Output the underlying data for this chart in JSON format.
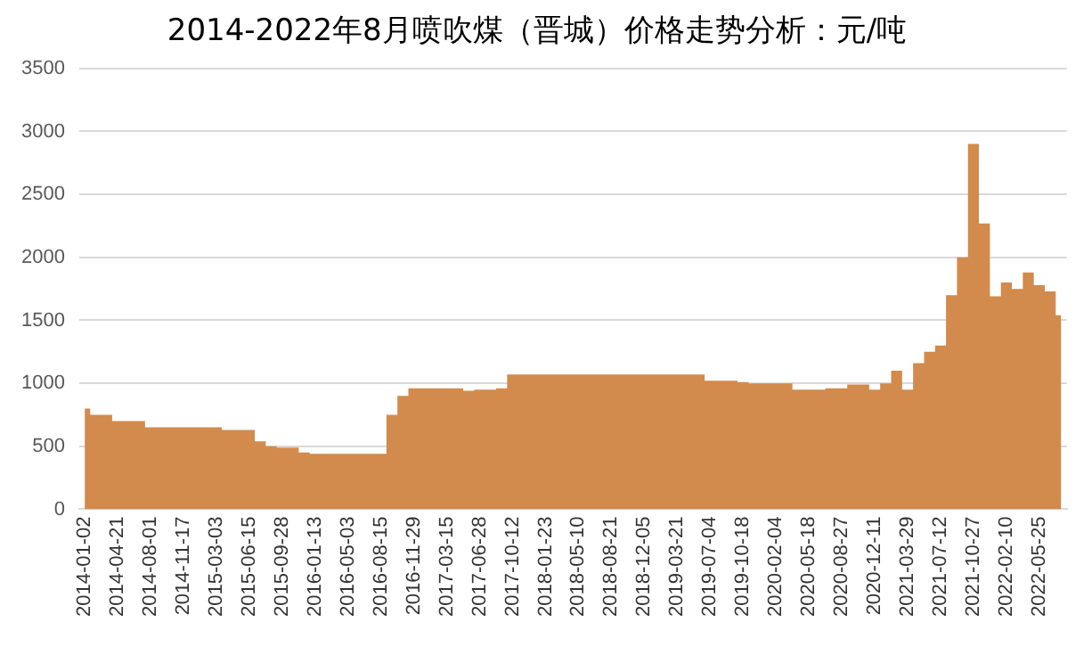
{
  "chart_data": {
    "type": "area",
    "title": "2014-2022年8月喷吹煤（晋城）价格走势分析：元/吨",
    "categories": [
      "2014-01-02",
      null,
      null,
      "2014-04-21",
      null,
      null,
      "2014-08-01",
      null,
      null,
      "2014-11-17",
      null,
      null,
      "2015-03-03",
      null,
      null,
      "2015-06-15",
      null,
      null,
      "2015-09-28",
      null,
      null,
      "2016-01-13",
      null,
      null,
      "2016-05-03",
      null,
      null,
      "2016-08-15",
      null,
      null,
      "2016-11-29",
      null,
      null,
      "2017-03-15",
      null,
      null,
      "2017-06-28",
      null,
      null,
      "2017-10-12",
      null,
      null,
      "2018-01-23",
      null,
      null,
      "2018-05-10",
      null,
      null,
      "2018-08-21",
      null,
      null,
      "2018-12-05",
      null,
      null,
      "2019-03-21",
      null,
      null,
      "2019-07-04",
      null,
      null,
      "2019-10-18",
      null,
      null,
      "2020-02-04",
      null,
      null,
      "2020-05-18",
      null,
      null,
      "2020-08-27",
      null,
      null,
      "2020-12-11",
      null,
      null,
      "2021-03-29",
      null,
      null,
      "2021-07-12",
      null,
      null,
      "2021-10-27",
      null,
      null,
      "2022-02-10",
      null,
      null,
      "2022-05-25",
      null,
      null
    ],
    "series": [
      {
        "color": "#d28b4c",
        "values": [
          800,
          750,
          750,
          700,
          700,
          700,
          650,
          650,
          650,
          650,
          650,
          650,
          650,
          630,
          630,
          630,
          540,
          500,
          490,
          490,
          450,
          440,
          440,
          440,
          440,
          440,
          440,
          440,
          750,
          900,
          960,
          960,
          960,
          960,
          960,
          940,
          950,
          950,
          960,
          1070,
          1070,
          1070,
          1070,
          1070,
          1070,
          1070,
          1070,
          1070,
          1070,
          1070,
          1070,
          1070,
          1070,
          1070,
          1070,
          1070,
          1070,
          1020,
          1020,
          1020,
          1010,
          1000,
          1000,
          1000,
          1000,
          950,
          950,
          950,
          960,
          960,
          990,
          990,
          950,
          1000,
          1100,
          950,
          1160,
          1250,
          1300,
          1700,
          2000,
          2900,
          2270,
          1690,
          1800,
          1750,
          1880,
          1780,
          1730,
          1540
        ]
      }
    ],
    "ylim": [
      0,
      3500
    ],
    "yticks": [
      0,
      500,
      1000,
      1500,
      2000,
      2500,
      3000,
      3500
    ],
    "grid": "y",
    "marker": "none"
  }
}
